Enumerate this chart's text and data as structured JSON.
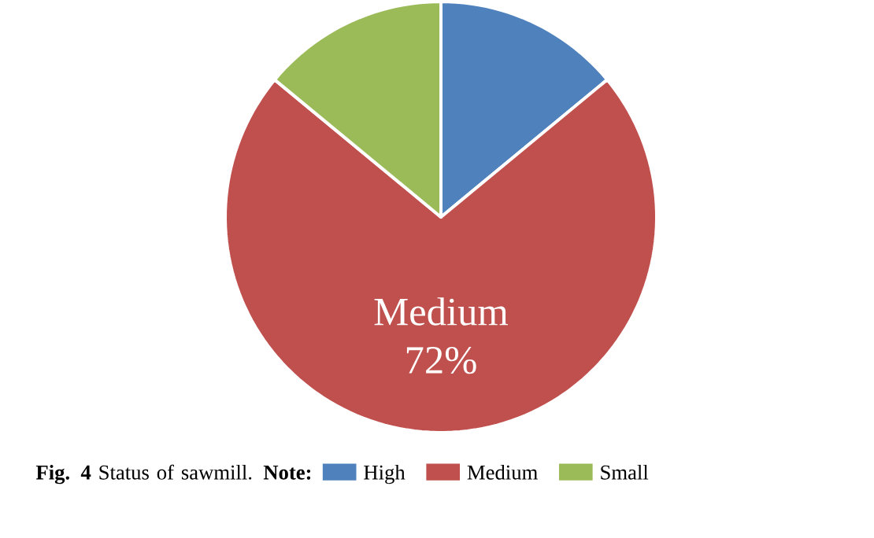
{
  "chart_data": {
    "type": "pie",
    "title": "**Fig. 4**  Status of sawmill. **Note:**",
    "categories": [
      "High",
      "Medium",
      "Small"
    ],
    "values": [
      14,
      72,
      14
    ],
    "colors": [
      "#4f81bd",
      "#c0504d",
      "#9bbb59"
    ],
    "value_labels": [
      null,
      "72%",
      null
    ],
    "legend": "bottom"
  }
}
